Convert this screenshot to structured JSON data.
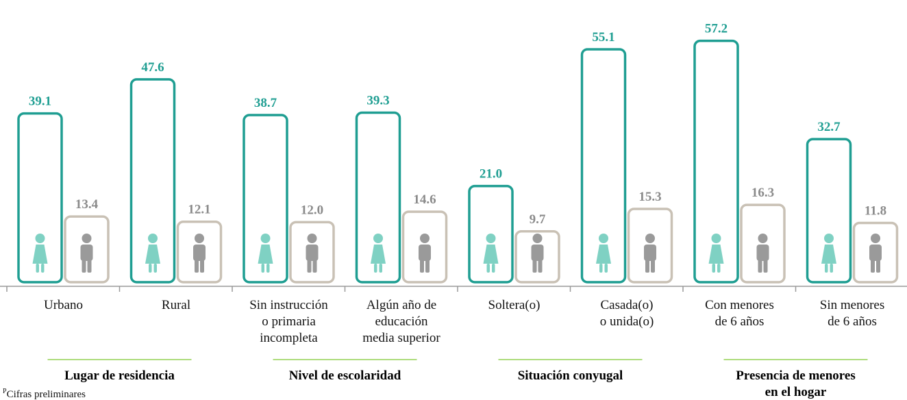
{
  "chart_data": {
    "type": "bar",
    "categories": [
      "Urbano",
      "Rural",
      "Sin instrucción\no primaria\nincompleta",
      "Algún año de\neducación\nmedia superior",
      "Soltera(o)",
      "Casada(o)\no unida(o)",
      "Con menores\nde 6 años",
      "Sin menores\nde 6 años"
    ],
    "series": [
      {
        "color": "#1f9e92",
        "values": [
          39.1,
          47.6,
          38.7,
          39.3,
          21.0,
          55.1,
          57.2,
          32.7
        ],
        "value_labels": [
          "39.1",
          "47.6",
          "38.7",
          "39.3",
          "21.0",
          "55.1",
          "57.2",
          "32.7"
        ]
      },
      {
        "color": "#c9c1b5",
        "values": [
          13.4,
          12.1,
          12.0,
          14.6,
          9.7,
          15.3,
          16.3,
          11.8
        ],
        "value_labels": [
          "13.4",
          "12.1",
          "12.0",
          "14.6",
          "9.7",
          "15.3",
          "16.3",
          "11.8"
        ]
      }
    ],
    "groups": [
      "Lugar de residencia",
      "Nivel de escolaridad",
      "Situación conyugal",
      "Presencia de menores\nen el hogar"
    ],
    "ylim": [
      -4,
      58
    ],
    "footnote_marker": "P",
    "footnote": "Cifras preliminares"
  }
}
